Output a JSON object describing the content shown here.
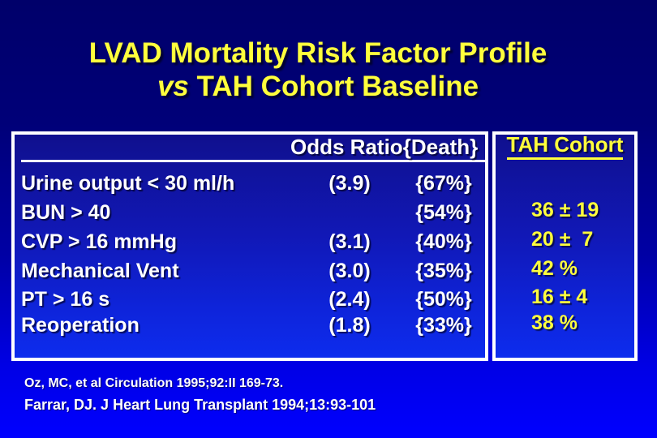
{
  "title": {
    "line1": "LVAD Mortality Risk Factor Profile",
    "line2_italic": "vs",
    "line2_rest": "TAH Cohort Baseline"
  },
  "table": {
    "headers": {
      "odds_ratio": "Odds Ratio",
      "death": "{Death}"
    },
    "rows": [
      {
        "label": "Urine output < 30 ml/h",
        "odds_ratio": "(3.9)",
        "death": "{67%}"
      },
      {
        "label": "BUN > 40",
        "odds_ratio": "",
        "death": "{54%}"
      },
      {
        "label": "CVP > 16 mmHg",
        "odds_ratio": "(3.1)",
        "death": "{40%}"
      },
      {
        "label": "Mechanical Vent",
        "odds_ratio": "(3.0)",
        "death": "{35%}"
      },
      {
        "label": "PT > 16 s",
        "odds_ratio": "(2.4)",
        "death": "{50%}"
      },
      {
        "label": "Reoperation",
        "odds_ratio": "(1.8)",
        "death": "{33%}"
      }
    ]
  },
  "tah_cohort": {
    "header": "TAH Cohort",
    "values": [
      "",
      "36 ± 19",
      "20 ±  7",
      "42 %",
      "16 ± 4",
      "38 %"
    ]
  },
  "citations": {
    "line1": "Oz, MC, et al Circulation 1995;92:II 169-73.",
    "line2": "Farrar, DJ. J Heart Lung Transplant 1994;13:93-101"
  },
  "colors": {
    "background_top": "#00006a",
    "background_bottom": "#0000ff",
    "box_border": "#ffffff",
    "title_yellow": "#ffff3c",
    "table_text_white": "#ffffff",
    "tah_values_yellow": "#ffff3c"
  }
}
